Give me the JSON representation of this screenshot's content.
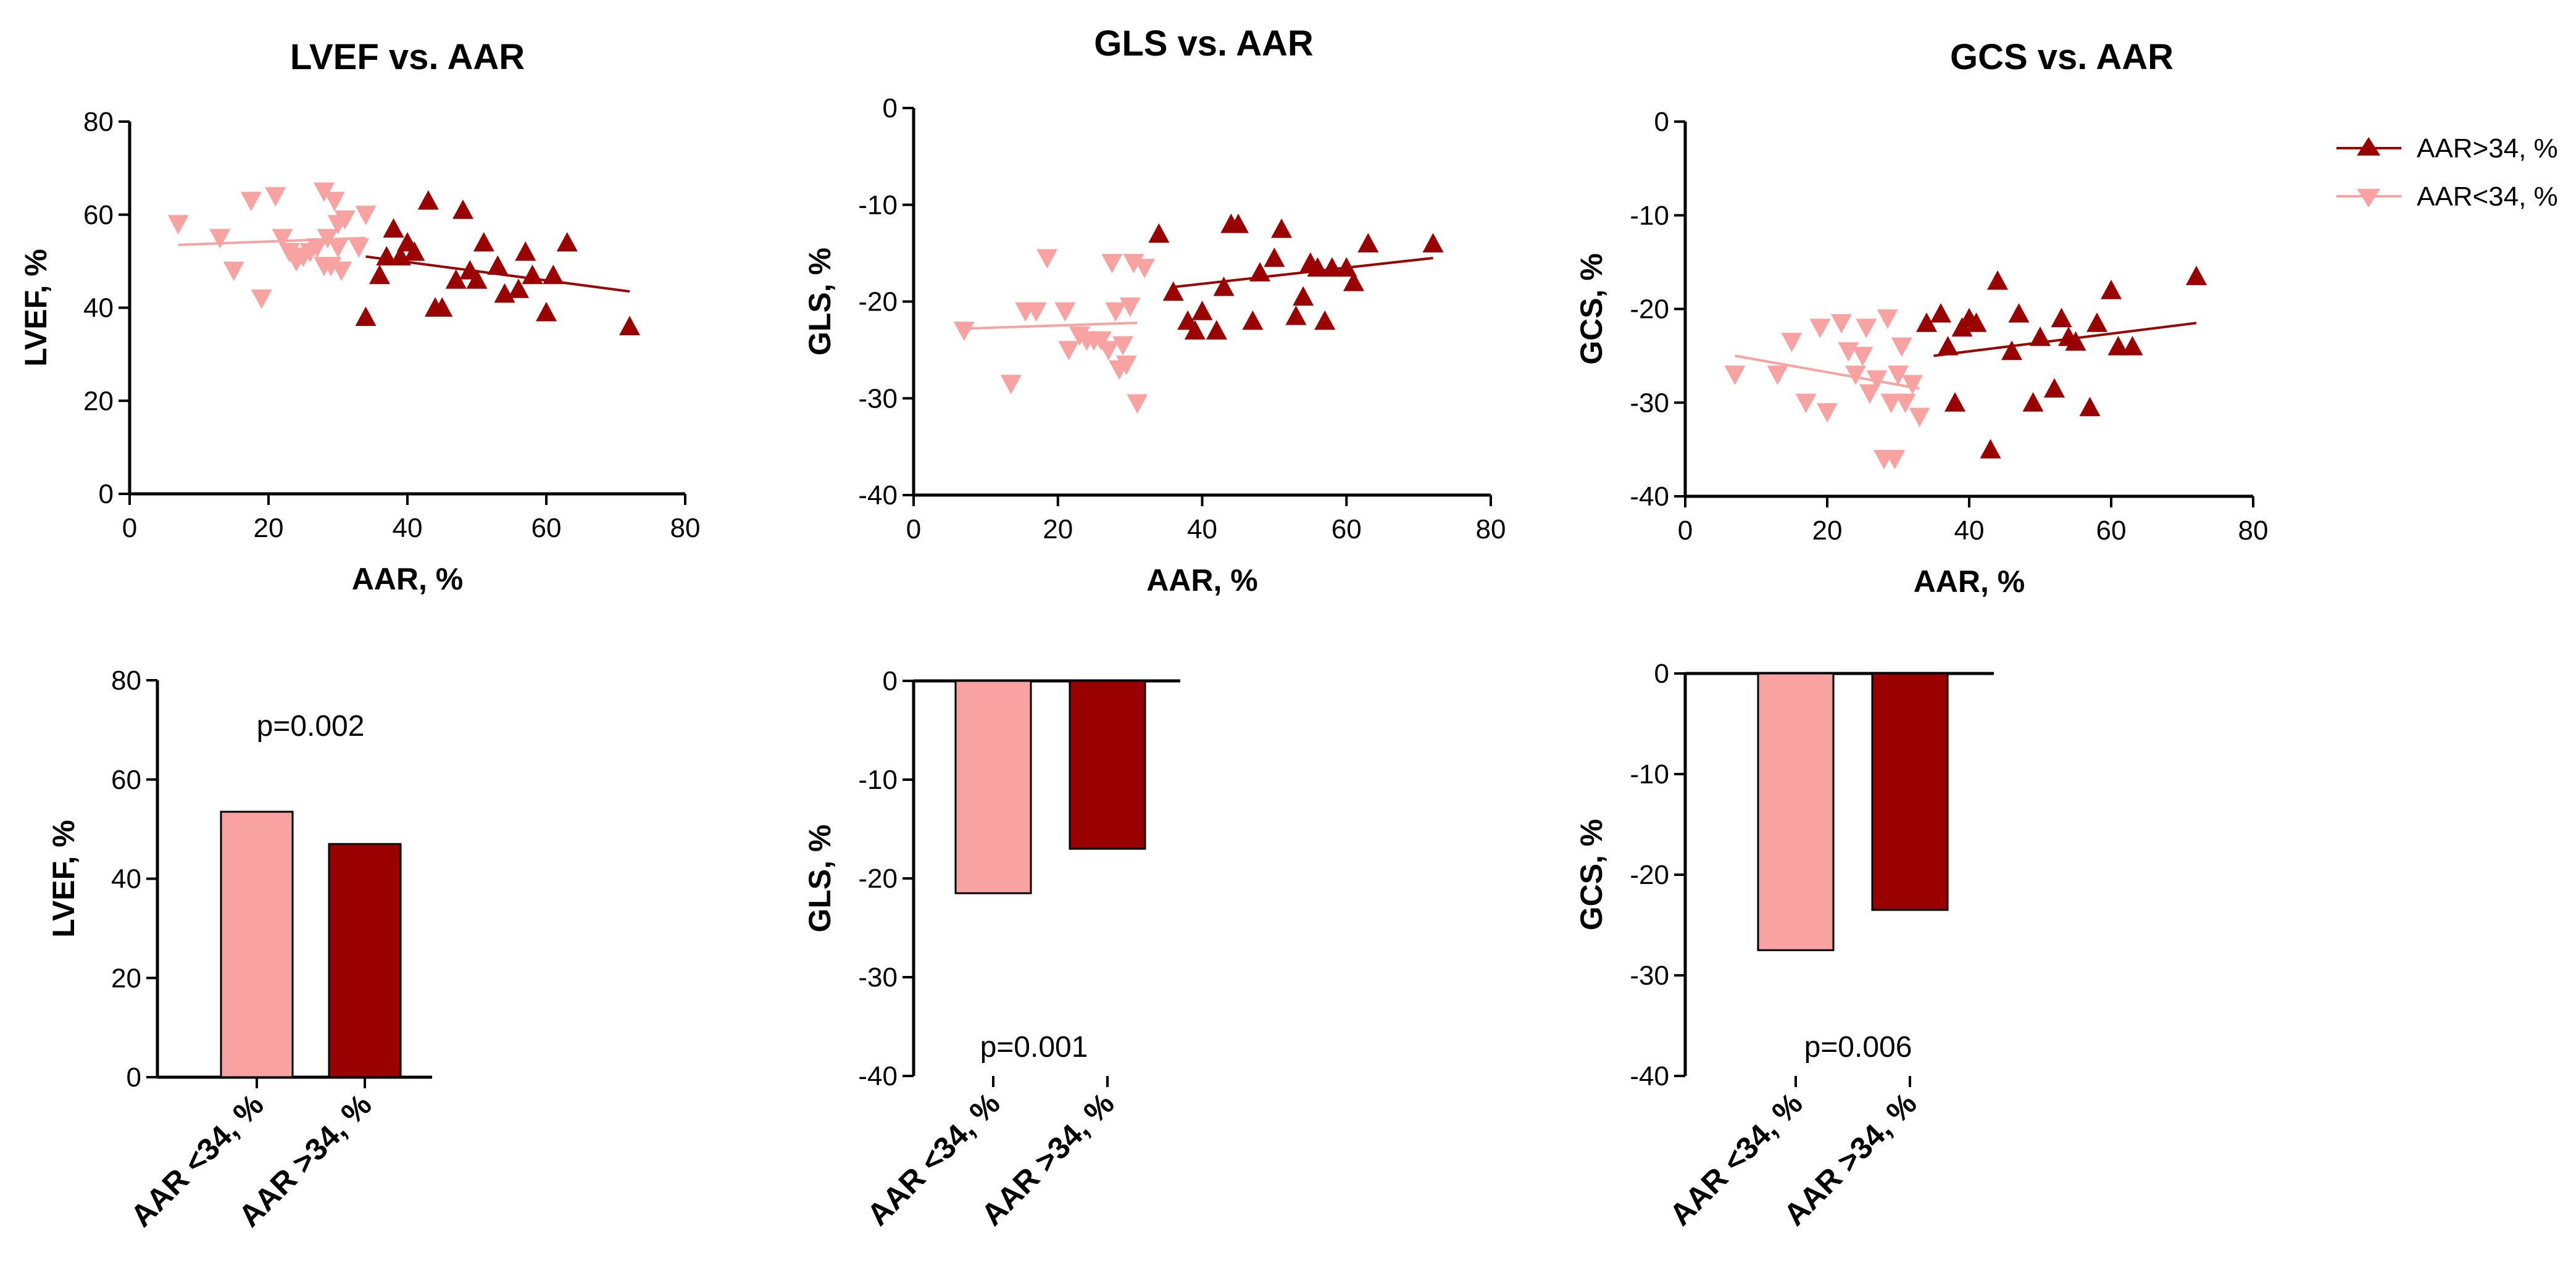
{
  "colors": {
    "light": "#f8a2a2",
    "dark": "#9b0000",
    "axis": "#000000"
  },
  "legend": [
    {
      "label": "AAR>34, %",
      "color": "#9b0000",
      "marker": "triangle-up"
    },
    {
      "label": "AAR<34, %",
      "color": "#f8a2a2",
      "marker": "triangle-down"
    }
  ],
  "chart_data": [
    {
      "id": "lvef-scatter",
      "type": "scatter",
      "title": "LVEF vs. AAR",
      "xlabel": "AAR, %",
      "ylabel": "LVEF, %",
      "xlim": [
        0,
        80
      ],
      "ylim": [
        0,
        80
      ],
      "xticks": [
        0,
        20,
        40,
        60,
        80
      ],
      "yticks": [
        0,
        20,
        40,
        60,
        80
      ],
      "series": [
        {
          "name": "AAR<34, %",
          "color": "#f8a2a2",
          "marker": "triangle-down",
          "x": [
            7,
            13,
            15,
            17.5,
            19,
            21,
            22,
            23,
            24,
            25,
            26,
            27,
            28,
            28,
            28.5,
            29,
            29.5,
            30,
            30,
            30.5,
            31,
            33,
            34
          ],
          "y": [
            58,
            55,
            48,
            63,
            42,
            64,
            55,
            52,
            50,
            51,
            52,
            53,
            49,
            65,
            55,
            49,
            63,
            58,
            53,
            48,
            59,
            53,
            60
          ],
          "trend": {
            "x": [
              7,
              34
            ],
            "y": [
              53.5,
              55
            ]
          }
        },
        {
          "name": "AAR>34, %",
          "color": "#9b0000",
          "marker": "triangle-up",
          "x": [
            34,
            36,
            37,
            38,
            39,
            40,
            41,
            43,
            44,
            44,
            45,
            47,
            48,
            49,
            50,
            51,
            53,
            54,
            56,
            57,
            58,
            60,
            61,
            63,
            72
          ],
          "y": [
            38,
            47,
            51,
            57,
            51,
            54,
            52,
            63,
            40,
            40,
            40,
            46,
            61,
            48,
            46,
            54,
            49,
            43,
            44,
            52,
            47,
            39,
            47,
            54,
            36
          ],
          "trend": {
            "x": [
              34,
              72
            ],
            "y": [
              51,
              43.5
            ]
          }
        }
      ]
    },
    {
      "id": "gls-scatter",
      "type": "scatter",
      "title": "GLS vs. AAR",
      "xlabel": "AAR, %",
      "ylabel": "GLS, %",
      "xlim": [
        0,
        80
      ],
      "ylim": [
        -40,
        0
      ],
      "xticks": [
        0,
        20,
        40,
        60,
        80
      ],
      "yticks": [
        0,
        -10,
        -20,
        -30,
        -40
      ],
      "series": [
        {
          "name": "AAR<34, %",
          "color": "#f8a2a2",
          "marker": "triangle-down",
          "x": [
            7,
            13.5,
            15.5,
            17,
            18.5,
            21,
            21.5,
            23,
            24,
            25,
            26,
            27,
            27.5,
            28,
            28.5,
            29,
            29.5,
            30,
            30.5,
            31,
            32
          ],
          "y": [
            -23,
            -28.5,
            -21,
            -21,
            -15.5,
            -21,
            -25,
            -23.5,
            -24,
            -24,
            -24,
            -25,
            -16,
            -21,
            -27,
            -24.5,
            -26.5,
            -20.5,
            -16,
            -30.5,
            -16.5
          ],
          "trend": {
            "x": [
              7,
              31
            ],
            "y": [
              -22.8,
              -22.2
            ]
          }
        },
        {
          "name": "AAR>34, %",
          "color": "#9b0000",
          "marker": "triangle-up",
          "x": [
            34,
            36,
            38,
            39,
            40,
            42,
            43,
            44,
            45,
            47,
            48,
            50,
            51,
            53,
            54,
            55,
            56,
            57,
            58,
            60,
            61,
            63,
            72
          ],
          "y": [
            -13,
            -19,
            -22,
            -23,
            -21,
            -23,
            -18.5,
            -12,
            -12,
            -22,
            -17,
            -15.5,
            -12.5,
            -21.5,
            -19.5,
            -16,
            -16.5,
            -22,
            -16.5,
            -16.5,
            -18,
            -14,
            -14
          ],
          "trend": {
            "x": [
              36,
              72
            ],
            "y": [
              -18.5,
              -15.5
            ]
          }
        }
      ]
    },
    {
      "id": "gcs-scatter",
      "type": "scatter",
      "title": "GCS vs. AAR",
      "xlabel": "AAR, %",
      "ylabel": "GCS, %",
      "xlim": [
        0,
        80
      ],
      "ylim": [
        -40,
        0
      ],
      "xticks": [
        0,
        20,
        40,
        60,
        80
      ],
      "yticks": [
        0,
        -10,
        -20,
        -30,
        -40
      ],
      "series": [
        {
          "name": "AAR<34, %",
          "color": "#f8a2a2",
          "marker": "triangle-down",
          "x": [
            7,
            13,
            15,
            17,
            19,
            20,
            22,
            23,
            24,
            25,
            25.5,
            26,
            27,
            28,
            28.5,
            29,
            29.5,
            30,
            30.5,
            31,
            32,
            33
          ],
          "y": [
            -27,
            -27,
            -23.5,
            -30,
            -22,
            -31,
            -21.5,
            -24.5,
            -27,
            -25,
            -22,
            -29,
            -27.5,
            -36,
            -21,
            -30,
            -36,
            -27,
            -24,
            -30,
            -28,
            -31.5
          ],
          "trend": {
            "x": [
              7,
              33
            ],
            "y": [
              -25,
              -28.5
            ]
          }
        },
        {
          "name": "AAR>34, %",
          "color": "#9b0000",
          "marker": "triangle-up",
          "x": [
            34,
            36,
            37,
            38,
            39,
            40,
            41,
            43,
            44,
            46,
            47,
            49,
            50,
            52,
            53,
            54,
            55,
            57,
            58,
            60,
            61,
            63,
            72
          ],
          "y": [
            -21.5,
            -20.5,
            -24,
            -30,
            -22,
            -21,
            -21.5,
            -35,
            -17,
            -24.5,
            -20.5,
            -30,
            -23,
            -28.5,
            -21,
            -23,
            -23.5,
            -30.5,
            -21.5,
            -18,
            -24,
            -24,
            -16.5
          ],
          "trend": {
            "x": [
              35,
              72
            ],
            "y": [
              -25,
              -21.5
            ]
          }
        }
      ]
    },
    {
      "id": "lvef-bar",
      "type": "bar",
      "xlabel": "",
      "ylabel": "LVEF, %",
      "ylim": [
        0,
        80
      ],
      "yticks": [
        0,
        20,
        40,
        60,
        80
      ],
      "categories": [
        "AAR <34, %",
        "AAR >34, %"
      ],
      "values": [
        53.5,
        47
      ],
      "colors": [
        "#f8a2a2",
        "#9b0000"
      ],
      "annotation": "p=0.002"
    },
    {
      "id": "gls-bar",
      "type": "bar",
      "xlabel": "",
      "ylabel": "GLS, %",
      "ylim": [
        -40,
        0
      ],
      "yticks": [
        0,
        -10,
        -20,
        -30,
        -40
      ],
      "categories": [
        "AAR <34, %",
        "AAR >34, %"
      ],
      "values": [
        -21.5,
        -17
      ],
      "colors": [
        "#f8a2a2",
        "#9b0000"
      ],
      "annotation": "p=0.001"
    },
    {
      "id": "gcs-bar",
      "type": "bar",
      "xlabel": "",
      "ylabel": "GCS, %",
      "ylim": [
        -40,
        0
      ],
      "yticks": [
        0,
        -10,
        -20,
        -30,
        -40
      ],
      "categories": [
        "AAR <34, %",
        "AAR >34, %"
      ],
      "values": [
        -27.5,
        -23.5
      ],
      "colors": [
        "#f8a2a2",
        "#9b0000"
      ],
      "annotation": "p=0.006"
    }
  ]
}
